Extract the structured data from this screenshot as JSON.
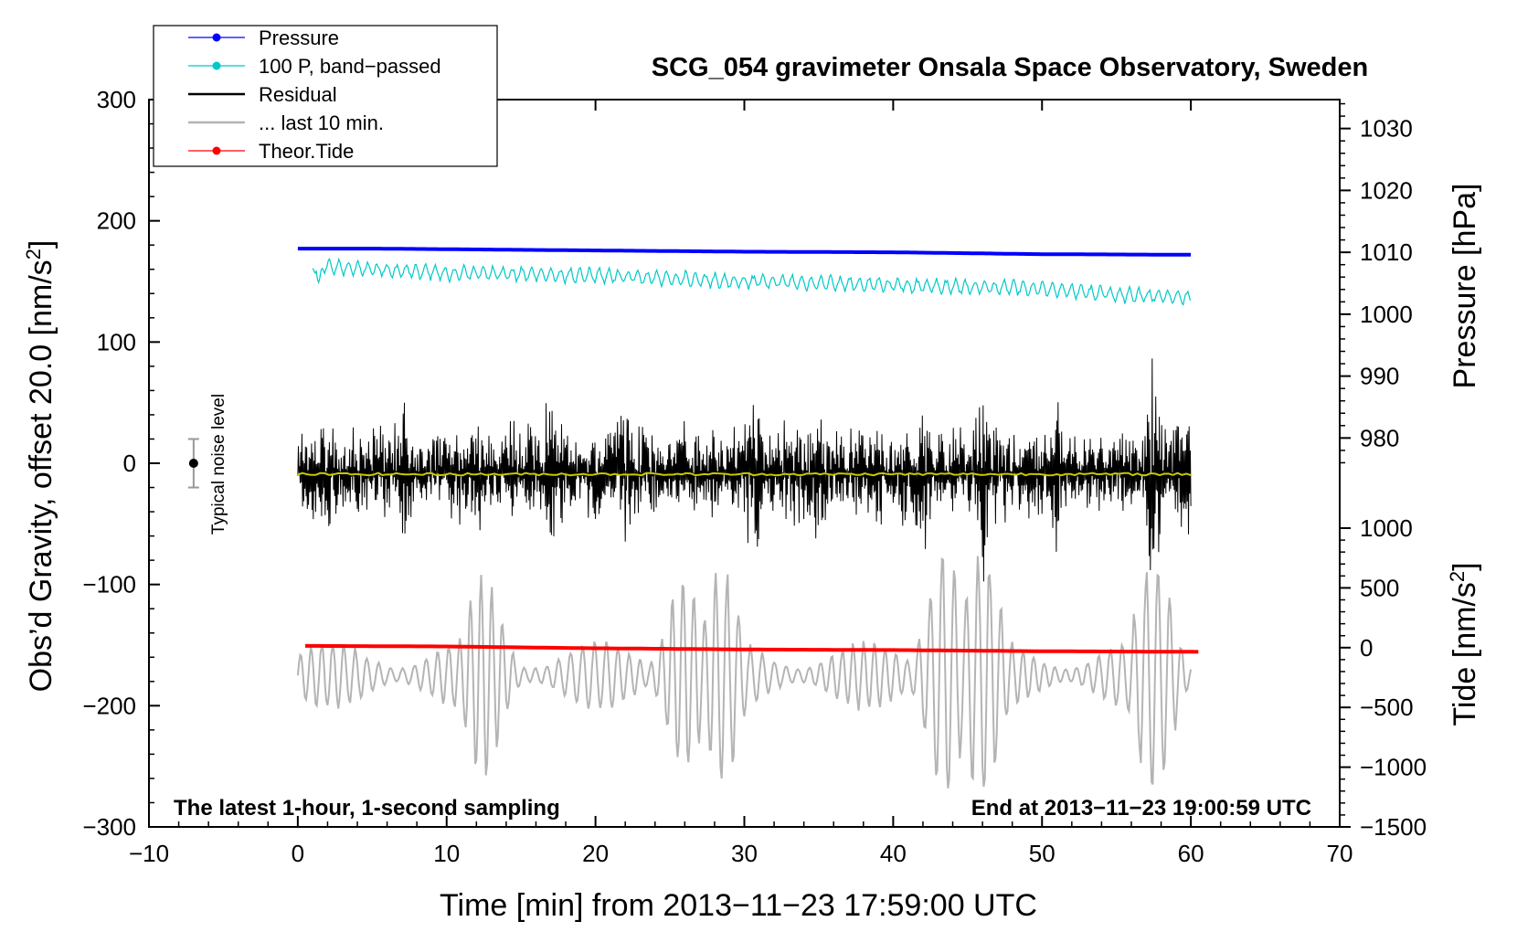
{
  "chart_data": {
    "type": "line",
    "title": "SCG_054 gravimeter Onsala Space Observatory, Sweden",
    "xlabel": "Time [min] from 2013−11−23 17:59:00 UTC",
    "ylabel_left": "Obs’d Gravity, offset 20.0 [nm/s",
    "ylabel_left_sup": "2",
    "ylabel_left_end": "]",
    "ylabel_right_pressure": "Pressure [hPa]",
    "ylabel_right_tide": "Tide [nm/s",
    "ylabel_right_tide_sup": "2",
    "ylabel_right_tide_end": "]",
    "xlim": [
      -10,
      70
    ],
    "ylim": [
      -300,
      300
    ],
    "x_ticks": [
      "−10",
      "0",
      "10",
      "20",
      "30",
      "40",
      "50",
      "60",
      "70"
    ],
    "y_ticks_left": [
      "300",
      "200",
      "100",
      "0",
      "−100",
      "−200",
      "−300"
    ],
    "pressure_ticks": [
      "1030",
      "1020",
      "1010",
      "1000",
      "990",
      "980"
    ],
    "pressure_range": [
      974,
      1036
    ],
    "tide_ticks": [
      "1000",
      "500",
      "0",
      "−500",
      "−1000",
      "−1500"
    ],
    "tide_range": [
      -1500,
      1000
    ],
    "annotation_left": "The latest 1-hour, 1-second sampling",
    "annotation_right": "End at 2013−11−23 19:00:59 UTC",
    "noise_label": "Typical noise level",
    "noise_bar": {
      "x": -7,
      "center": 0,
      "half_range": 20
    },
    "legend": [
      {
        "label": "Pressure",
        "color": "#0000ff",
        "marker": true
      },
      {
        "label": "100 P, band−passed",
        "color": "#00c8c8",
        "marker": true
      },
      {
        "label": "Residual",
        "color": "#000000",
        "marker": false
      },
      {
        "label": "... last 10 min.",
        "color": "#b4b4b4",
        "marker": false
      },
      {
        "label": "Theor.Tide",
        "color": "#ff0000",
        "marker": true
      }
    ],
    "series": [
      {
        "name": "Pressure",
        "color": "#0000ff",
        "axis": "pressure",
        "x": [
          0,
          5,
          10,
          20,
          30,
          40,
          50,
          60
        ],
        "values": [
          1010.6,
          1010.6,
          1010.5,
          1010.3,
          1010.1,
          1010.0,
          1009.7,
          1009.6
        ]
      },
      {
        "name": "100 P, band-passed",
        "color": "#00c8c8",
        "axis": "left",
        "x": [
          0,
          10,
          20,
          30,
          40,
          50,
          55,
          60
        ],
        "values": [
          163,
          157,
          155,
          150,
          147,
          144,
          139,
          137
        ],
        "oscillation_amplitude": 5
      },
      {
        "name": "Residual",
        "color": "#000000",
        "axis": "left",
        "x_range": [
          0,
          60
        ],
        "baseline": -8,
        "typical_amplitude": 45,
        "peak_amplitude": 115
      },
      {
        "name": "Yellow trend",
        "color": "#c8c800",
        "axis": "left",
        "x_range": [
          0,
          60
        ],
        "values_constant": -9
      },
      {
        "name": "... last 10 min.",
        "color": "#b4b4b4",
        "axis": "left",
        "x_range": [
          0,
          60
        ],
        "baseline": -175,
        "typical_amplitude": 30,
        "peak_amplitude": 110
      },
      {
        "name": "Theor.Tide",
        "color": "#ff0000",
        "axis": "tide",
        "x": [
          0,
          10,
          20,
          30,
          40,
          50,
          60.5
        ],
        "values": [
          15,
          10,
          -5,
          -15,
          -20,
          -30,
          -35
        ]
      }
    ]
  }
}
